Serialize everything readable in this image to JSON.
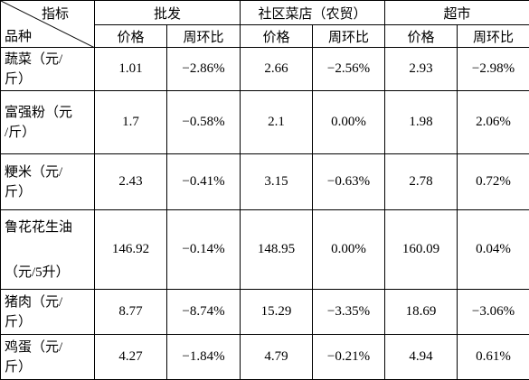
{
  "table": {
    "corner_top": "指标",
    "corner_bottom": "品种",
    "groups": [
      "批发",
      "社区菜店（农贸）",
      "超市"
    ],
    "subheaders": [
      "价格",
      "周环比",
      "价格",
      "周环比",
      "价格",
      "周环比"
    ],
    "rows": [
      {
        "name": [
          "蔬菜（元/",
          "斤）"
        ],
        "cells": [
          "1.01",
          "−2.86%",
          "2.66",
          "−2.56%",
          "2.93",
          "−2.98%"
        ]
      },
      {
        "name": [
          "富强粉（元",
          "/斤）"
        ],
        "cells": [
          "1.7",
          "−0.58%",
          "2.1",
          "0.00%",
          "1.98",
          "2.06%"
        ]
      },
      {
        "name": [
          "粳米（元/",
          "斤）"
        ],
        "cells": [
          "2.43",
          "−0.41%",
          "3.15",
          "−0.63%",
          "2.78",
          "0.72%"
        ]
      },
      {
        "name": [
          "鲁花花生油",
          "（元/5升）"
        ],
        "cells": [
          "146.92",
          "−0.14%",
          "148.95",
          "0.00%",
          "160.09",
          "0.04%"
        ]
      },
      {
        "name": [
          "猪肉（元/",
          "斤）"
        ],
        "cells": [
          "8.77",
          "−8.74%",
          "15.29",
          "−3.35%",
          "18.69",
          "−3.06%"
        ]
      },
      {
        "name": [
          "鸡蛋（元/",
          "斤）"
        ],
        "cells": [
          "4.27",
          "−1.84%",
          "4.79",
          "−0.21%",
          "4.94",
          "0.61%"
        ]
      }
    ]
  }
}
